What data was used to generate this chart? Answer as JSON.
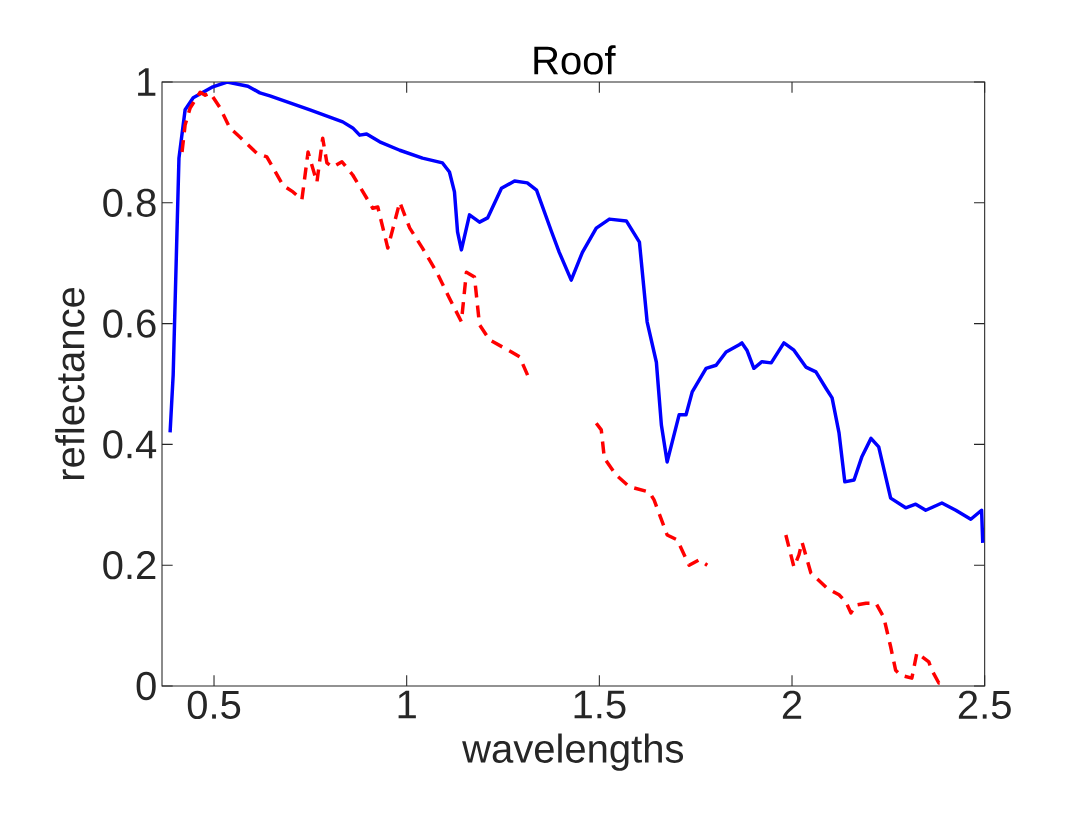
{
  "chart_data": {
    "type": "line",
    "title": "Roof",
    "xlabel": "wavelengths",
    "ylabel": "reflectance",
    "xlim": [
      0.365,
      2.5
    ],
    "ylim": [
      0,
      1
    ],
    "xticks": [
      0.5,
      1,
      1.5,
      2,
      2.5
    ],
    "yticks": [
      0,
      0.2,
      0.4,
      0.6,
      0.8,
      1
    ],
    "grid": false,
    "series": [
      {
        "color": "#0000ff",
        "line_style": "solid",
        "x": [
          0.386,
          0.394,
          0.409,
          0.425,
          0.446,
          0.497,
          0.534,
          0.588,
          0.619,
          0.645,
          0.749,
          0.834,
          0.86,
          0.878,
          0.896,
          0.93,
          0.982,
          1.041,
          1.093,
          1.111,
          1.124,
          1.132,
          1.142,
          1.163,
          1.189,
          1.21,
          1.246,
          1.28,
          1.313,
          1.337,
          1.376,
          1.396,
          1.427,
          1.456,
          1.492,
          1.526,
          1.57,
          1.604,
          1.624,
          1.648,
          1.661,
          1.676,
          1.707,
          1.725,
          1.741,
          1.777,
          1.803,
          1.829,
          1.863,
          1.87,
          1.883,
          1.901,
          1.922,
          1.946,
          1.979,
          2.005,
          2.036,
          2.062,
          2.088,
          2.104,
          2.122,
          2.137,
          2.161,
          2.181,
          2.205,
          2.225,
          2.256,
          2.295,
          2.321,
          2.347,
          2.389,
          2.425,
          2.464,
          2.492,
          2.495
        ],
        "values": [
          0.42,
          0.515,
          0.874,
          0.954,
          0.974,
          0.992,
          1.0,
          0.993,
          0.982,
          0.977,
          0.954,
          0.934,
          0.924,
          0.912,
          0.914,
          0.901,
          0.887,
          0.874,
          0.866,
          0.851,
          0.818,
          0.752,
          0.722,
          0.78,
          0.768,
          0.775,
          0.824,
          0.836,
          0.833,
          0.821,
          0.752,
          0.718,
          0.672,
          0.718,
          0.758,
          0.773,
          0.77,
          0.735,
          0.603,
          0.536,
          0.432,
          0.371,
          0.449,
          0.449,
          0.487,
          0.526,
          0.531,
          0.553,
          0.565,
          0.568,
          0.556,
          0.526,
          0.537,
          0.535,
          0.568,
          0.556,
          0.528,
          0.52,
          0.493,
          0.477,
          0.419,
          0.338,
          0.341,
          0.379,
          0.41,
          0.396,
          0.311,
          0.295,
          0.301,
          0.291,
          0.303,
          0.291,
          0.276,
          0.291,
          0.237
        ]
      },
      {
        "color": "#ff0000",
        "line_style": "dashed",
        "x": [
          0.417,
          0.425,
          0.438,
          0.464,
          0.477,
          0.49,
          0.516,
          0.541,
          0.567,
          0.611,
          0.637,
          0.679,
          0.705,
          0.728,
          0.744,
          0.767,
          0.782,
          0.793,
          0.808,
          0.832,
          0.86,
          0.912,
          0.925,
          0.951,
          0.982,
          1.008,
          1.041,
          1.078,
          1.111,
          1.142,
          1.155,
          1.176,
          1.189,
          1.215,
          1.272,
          1.293,
          1.319,
          1.4,
          1.492,
          1.505,
          1.513,
          1.544,
          1.578,
          1.63,
          1.642,
          1.676,
          1.702,
          1.733,
          1.759,
          1.78,
          1.88,
          1.984,
          2.005,
          2.018,
          2.026,
          2.049,
          2.091,
          2.122,
          2.14,
          2.153,
          2.166,
          2.192,
          2.218,
          2.238,
          2.256,
          2.269,
          2.282,
          2.311,
          2.324,
          2.355,
          2.363,
          2.381,
          2.389
        ],
        "values": [
          0.884,
          0.929,
          0.957,
          0.983,
          0.978,
          0.982,
          0.957,
          0.924,
          0.909,
          0.882,
          0.876,
          0.829,
          0.818,
          0.805,
          0.884,
          0.834,
          0.907,
          0.866,
          0.859,
          0.868,
          0.846,
          0.791,
          0.793,
          0.725,
          0.801,
          0.758,
          0.725,
          0.685,
          0.642,
          0.603,
          0.685,
          0.677,
          0.598,
          0.573,
          0.553,
          0.545,
          0.507,
          null,
          0.435,
          0.424,
          0.377,
          0.349,
          0.33,
          0.321,
          0.308,
          0.25,
          0.242,
          0.2,
          0.209,
          0.2,
          null,
          0.25,
          0.197,
          0.217,
          0.238,
          0.187,
          0.162,
          0.151,
          0.139,
          0.121,
          0.134,
          0.137,
          0.137,
          0.114,
          0.065,
          0.026,
          0.018,
          0.013,
          0.055,
          0.04,
          0.026,
          0.005,
          0.01
        ]
      }
    ]
  }
}
